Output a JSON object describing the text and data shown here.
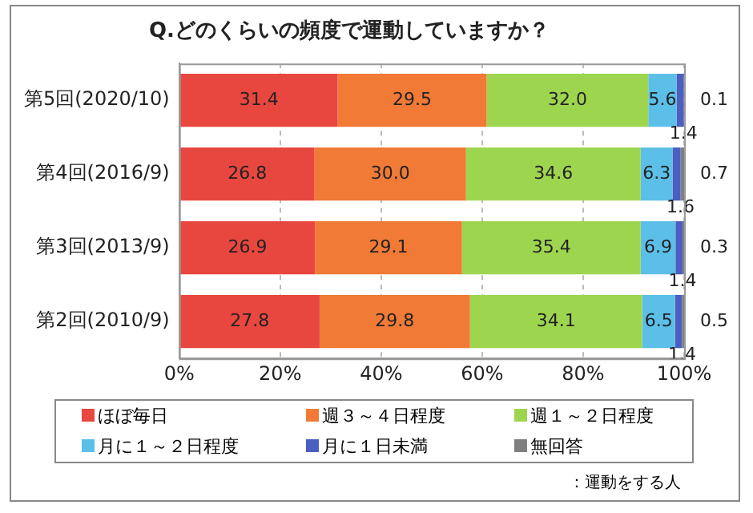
{
  "chart_data": {
    "type": "bar",
    "orientation": "horizontal",
    "stacked": true,
    "title": "Q.どのくらいの頻度で運動していますか？",
    "categories": [
      "第5回(2020/10)",
      "第4回(2016/9)",
      "第3回(2013/9)",
      "第2回(2010/9)"
    ],
    "series": [
      {
        "name": "ほぼ毎日",
        "color": "#e8473f",
        "values": [
          31.4,
          26.8,
          26.9,
          27.8
        ],
        "value_labels": [
          "31.4",
          "26.8",
          "26.9",
          "27.8"
        ]
      },
      {
        "name": "週３～４日程度",
        "color": "#f07a36",
        "values": [
          29.5,
          30.0,
          29.1,
          29.8
        ],
        "value_labels": [
          "29.5",
          "30.0",
          "29.1",
          "29.8"
        ]
      },
      {
        "name": "週１～２日程度",
        "color": "#9ed54f",
        "values": [
          32.0,
          34.6,
          35.4,
          34.1
        ],
        "value_labels": [
          "32.0",
          "34.6",
          "35.4",
          "34.1"
        ]
      },
      {
        "name": "月に１～２日程度",
        "color": "#5bbfe8",
        "values": [
          5.6,
          6.3,
          6.9,
          6.5
        ],
        "value_labels": [
          "5.6",
          "6.3",
          "6.9",
          "6.5"
        ]
      },
      {
        "name": "月に１日未満",
        "color": "#4a5fbf",
        "values": [
          1.4,
          1.6,
          1.4,
          1.4
        ],
        "value_labels": [
          "1.4",
          "1.6",
          "1.4",
          "1.4"
        ]
      },
      {
        "name": "無回答",
        "color": "#7f7f7f",
        "values": [
          0.1,
          0.7,
          0.3,
          0.5
        ],
        "value_labels": [
          "0.1",
          "0.7",
          "0.3",
          "0.5"
        ]
      }
    ],
    "xlim": [
      0,
      100
    ],
    "xticks": [
      {
        "value": 0,
        "label": "0%"
      },
      {
        "value": 20,
        "label": "20%"
      },
      {
        "value": 40,
        "label": "40%"
      },
      {
        "value": 60,
        "label": "60%"
      },
      {
        "value": 80,
        "label": "80%"
      },
      {
        "value": 100,
        "label": "100%"
      }
    ],
    "grid": "x",
    "legend": "bottom",
    "annotations": [
      "：運動をする人"
    ]
  }
}
